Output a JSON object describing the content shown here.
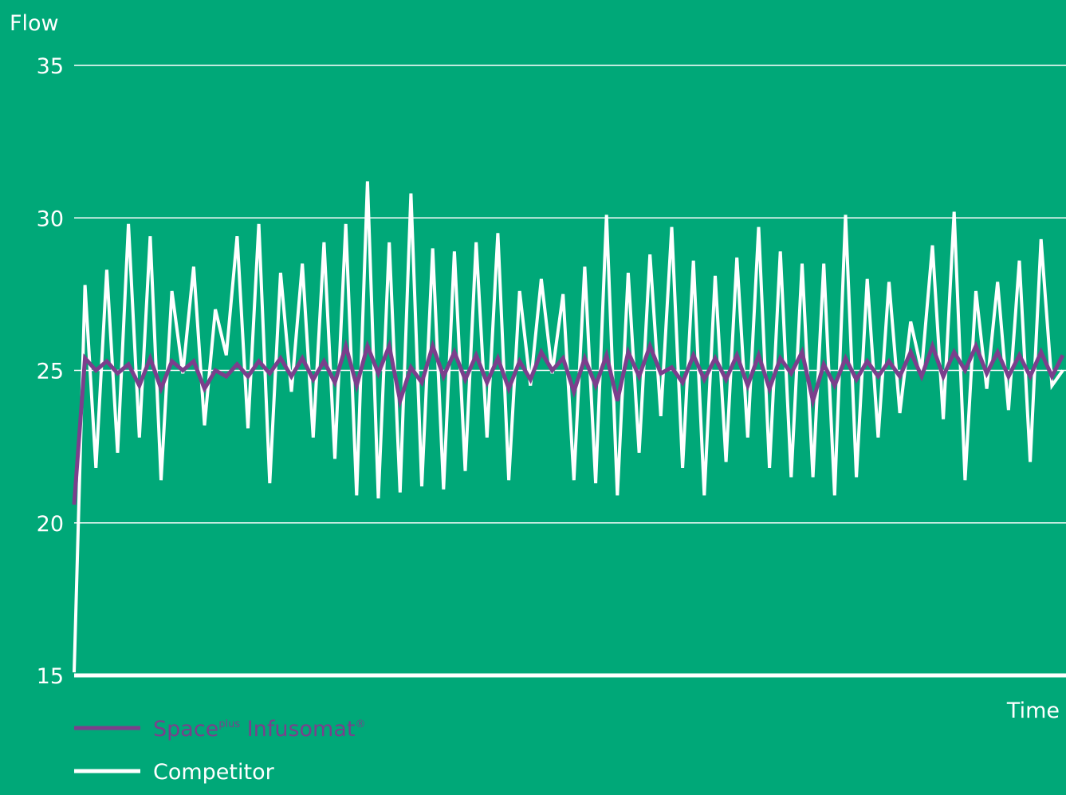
{
  "chart_data": {
    "type": "line",
    "title": "",
    "xlabel": "Time",
    "ylabel": "Flow",
    "ylim": [
      15,
      35
    ],
    "yticks": [
      15,
      20,
      25,
      30,
      35
    ],
    "grid": true,
    "legend_position": "bottom-left",
    "colors": {
      "background": "#00a878",
      "competitor": "#ffffff",
      "spaceplus": "#7b3f8c",
      "grid": "#ffffff"
    },
    "legend": {
      "spaceplus": {
        "main": "Space",
        "sup": "plus",
        "rest": " Infusomat",
        "mark": "®"
      },
      "competitor": "Competitor"
    },
    "series": [
      {
        "name": "Competitor",
        "x": [
          0,
          1,
          2,
          3,
          4,
          5,
          6,
          7,
          8,
          9,
          10,
          11,
          12,
          13,
          14,
          15,
          16,
          17,
          18,
          19,
          20,
          21,
          22,
          23,
          24,
          25,
          26,
          27,
          28,
          29,
          30,
          31,
          32,
          33,
          34,
          35,
          36,
          37,
          38,
          39,
          40,
          41,
          42,
          43,
          44,
          45,
          46,
          47,
          48,
          49,
          50,
          51,
          52,
          53,
          54,
          55,
          56,
          57,
          58,
          59,
          60,
          61,
          62,
          63,
          64,
          65,
          66,
          67,
          68,
          69,
          70,
          71,
          72,
          73,
          74,
          75,
          76,
          77,
          78,
          79,
          80,
          81,
          82,
          83,
          84,
          85,
          86,
          87,
          88,
          89,
          90,
          91
        ],
        "values": [
          15.1,
          27.8,
          21.8,
          28.3,
          22.3,
          29.8,
          22.8,
          29.4,
          21.4,
          27.6,
          24.9,
          28.4,
          23.2,
          27.0,
          25.5,
          29.4,
          23.1,
          29.8,
          21.3,
          28.2,
          24.3,
          28.5,
          22.8,
          29.2,
          22.1,
          29.8,
          20.9,
          31.2,
          20.8,
          29.2,
          21.0,
          30.8,
          21.2,
          29.0,
          21.1,
          28.9,
          21.7,
          29.2,
          22.8,
          29.5,
          21.4,
          27.6,
          24.5,
          28.0,
          24.9,
          27.5,
          21.4,
          28.4,
          21.3,
          30.1,
          20.9,
          28.2,
          22.3,
          28.8,
          23.5,
          29.7,
          21.8,
          28.6,
          20.9,
          28.1,
          22.0,
          28.7,
          22.8,
          29.7,
          21.8,
          28.9,
          21.5,
          28.5,
          21.5,
          28.5,
          20.9,
          30.1,
          21.5,
          28.0,
          22.8,
          27.9,
          23.6,
          26.6,
          25.0,
          29.1,
          23.4,
          30.2,
          21.4,
          27.6,
          24.4,
          27.9,
          23.7,
          28.6,
          22.0,
          29.3,
          24.5,
          25.0
        ]
      },
      {
        "name": "Space plus Infusomat",
        "x": [
          0,
          1,
          2,
          3,
          4,
          5,
          6,
          7,
          8,
          9,
          10,
          11,
          12,
          13,
          14,
          15,
          16,
          17,
          18,
          19,
          20,
          21,
          22,
          23,
          24,
          25,
          26,
          27,
          28,
          29,
          30,
          31,
          32,
          33,
          34,
          35,
          36,
          37,
          38,
          39,
          40,
          41,
          42,
          43,
          44,
          45,
          46,
          47,
          48,
          49,
          50,
          51,
          52,
          53,
          54,
          55,
          56,
          57,
          58,
          59,
          60,
          61,
          62,
          63,
          64,
          65,
          66,
          67,
          68,
          69,
          70,
          71,
          72,
          73,
          74,
          75,
          76,
          77,
          78,
          79,
          80,
          81,
          82,
          83,
          84,
          85,
          86,
          87,
          88,
          89,
          90,
          91
        ],
        "values": [
          20.6,
          25.4,
          25.0,
          25.3,
          24.9,
          25.2,
          24.5,
          25.4,
          24.4,
          25.3,
          25.0,
          25.3,
          24.4,
          25.0,
          24.8,
          25.2,
          24.8,
          25.3,
          24.9,
          25.4,
          24.8,
          25.4,
          24.7,
          25.3,
          24.6,
          25.8,
          24.5,
          25.8,
          24.9,
          25.8,
          24.0,
          25.1,
          24.6,
          25.8,
          24.8,
          25.6,
          24.7,
          25.5,
          24.6,
          25.4,
          24.4,
          25.3,
          24.7,
          25.6,
          25.0,
          25.4,
          24.3,
          25.4,
          24.5,
          25.5,
          24.0,
          25.6,
          24.8,
          25.8,
          24.9,
          25.1,
          24.6,
          25.5,
          24.7,
          25.4,
          24.7,
          25.5,
          24.5,
          25.5,
          24.4,
          25.4,
          24.9,
          25.6,
          24.0,
          25.2,
          24.5,
          25.4,
          24.7,
          25.3,
          24.8,
          25.3,
          24.8,
          25.6,
          24.8,
          25.8,
          24.8,
          25.6,
          25.0,
          25.8,
          24.9,
          25.6,
          24.8,
          25.5,
          24.8,
          25.6,
          24.8,
          25.5
        ]
      }
    ]
  }
}
